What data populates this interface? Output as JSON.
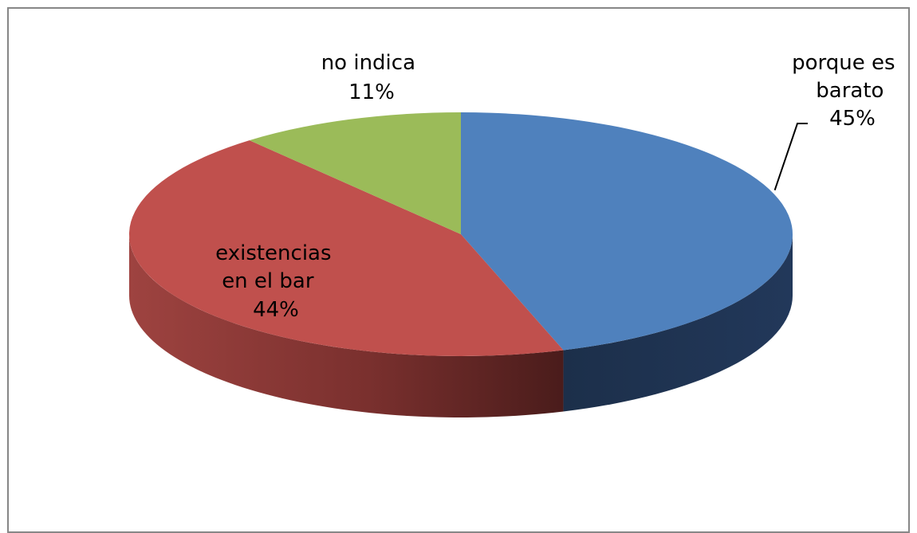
{
  "chart_data": {
    "type": "pie",
    "title": "",
    "style": "3d",
    "slices": [
      {
        "label": "porque es barato",
        "label_lines": [
          "porque es",
          "barato"
        ],
        "value": 45,
        "value_label": "45%",
        "color": "#4F81BD",
        "side_color": "#1F3552"
      },
      {
        "label": "existencias en el bar",
        "label_lines": [
          "existencias",
          "en el bar"
        ],
        "value": 44,
        "value_label": "44%",
        "color": "#C0504D",
        "side_color": "#8C3A37"
      },
      {
        "label": "no indica",
        "label_lines": [
          "no indica"
        ],
        "value": 11,
        "value_label": "11%",
        "color": "#9BBB59",
        "side_color": "#6F8A3C"
      }
    ],
    "legend": "none"
  }
}
